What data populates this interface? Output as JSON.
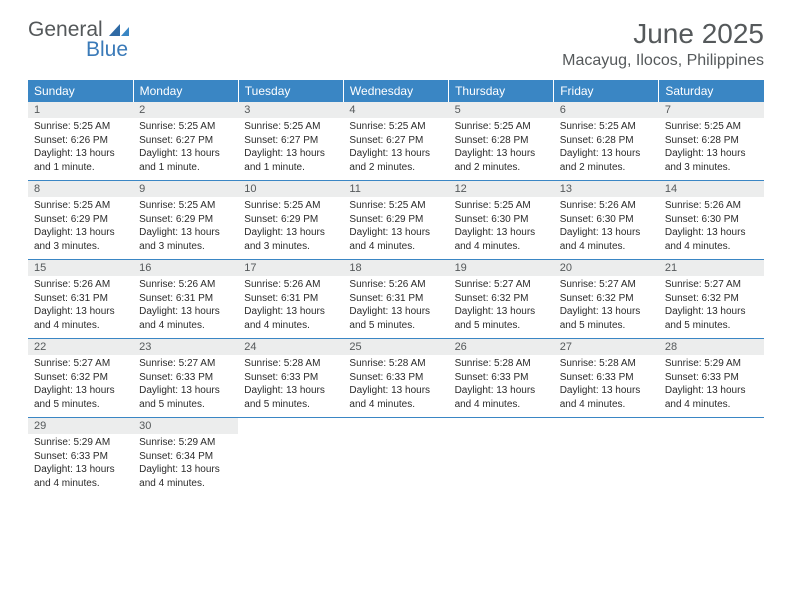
{
  "logo": {
    "text1": "General",
    "text2": "Blue"
  },
  "title": "June 2025",
  "location": "Macayug, Ilocos, Philippines",
  "colors": {
    "header_bg": "#3a86c4",
    "header_text": "#ffffff",
    "daynum_bg": "#eceded",
    "text_muted": "#55595b",
    "logo_blue": "#3a7ab8",
    "body_text": "#2b2b2b",
    "page_bg": "#ffffff"
  },
  "typography": {
    "title_fontsize": 28,
    "location_fontsize": 16,
    "header_fontsize": 12,
    "daynum_fontsize": 11,
    "body_fontsize": 10
  },
  "weekdays": [
    "Sunday",
    "Monday",
    "Tuesday",
    "Wednesday",
    "Thursday",
    "Friday",
    "Saturday"
  ],
  "weeks": [
    [
      {
        "num": "1",
        "sunrise": "Sunrise: 5:25 AM",
        "sunset": "Sunset: 6:26 PM",
        "day1": "Daylight: 13 hours",
        "day2": "and 1 minute."
      },
      {
        "num": "2",
        "sunrise": "Sunrise: 5:25 AM",
        "sunset": "Sunset: 6:27 PM",
        "day1": "Daylight: 13 hours",
        "day2": "and 1 minute."
      },
      {
        "num": "3",
        "sunrise": "Sunrise: 5:25 AM",
        "sunset": "Sunset: 6:27 PM",
        "day1": "Daylight: 13 hours",
        "day2": "and 1 minute."
      },
      {
        "num": "4",
        "sunrise": "Sunrise: 5:25 AM",
        "sunset": "Sunset: 6:27 PM",
        "day1": "Daylight: 13 hours",
        "day2": "and 2 minutes."
      },
      {
        "num": "5",
        "sunrise": "Sunrise: 5:25 AM",
        "sunset": "Sunset: 6:28 PM",
        "day1": "Daylight: 13 hours",
        "day2": "and 2 minutes."
      },
      {
        "num": "6",
        "sunrise": "Sunrise: 5:25 AM",
        "sunset": "Sunset: 6:28 PM",
        "day1": "Daylight: 13 hours",
        "day2": "and 2 minutes."
      },
      {
        "num": "7",
        "sunrise": "Sunrise: 5:25 AM",
        "sunset": "Sunset: 6:28 PM",
        "day1": "Daylight: 13 hours",
        "day2": "and 3 minutes."
      }
    ],
    [
      {
        "num": "8",
        "sunrise": "Sunrise: 5:25 AM",
        "sunset": "Sunset: 6:29 PM",
        "day1": "Daylight: 13 hours",
        "day2": "and 3 minutes."
      },
      {
        "num": "9",
        "sunrise": "Sunrise: 5:25 AM",
        "sunset": "Sunset: 6:29 PM",
        "day1": "Daylight: 13 hours",
        "day2": "and 3 minutes."
      },
      {
        "num": "10",
        "sunrise": "Sunrise: 5:25 AM",
        "sunset": "Sunset: 6:29 PM",
        "day1": "Daylight: 13 hours",
        "day2": "and 3 minutes."
      },
      {
        "num": "11",
        "sunrise": "Sunrise: 5:25 AM",
        "sunset": "Sunset: 6:29 PM",
        "day1": "Daylight: 13 hours",
        "day2": "and 4 minutes."
      },
      {
        "num": "12",
        "sunrise": "Sunrise: 5:25 AM",
        "sunset": "Sunset: 6:30 PM",
        "day1": "Daylight: 13 hours",
        "day2": "and 4 minutes."
      },
      {
        "num": "13",
        "sunrise": "Sunrise: 5:26 AM",
        "sunset": "Sunset: 6:30 PM",
        "day1": "Daylight: 13 hours",
        "day2": "and 4 minutes."
      },
      {
        "num": "14",
        "sunrise": "Sunrise: 5:26 AM",
        "sunset": "Sunset: 6:30 PM",
        "day1": "Daylight: 13 hours",
        "day2": "and 4 minutes."
      }
    ],
    [
      {
        "num": "15",
        "sunrise": "Sunrise: 5:26 AM",
        "sunset": "Sunset: 6:31 PM",
        "day1": "Daylight: 13 hours",
        "day2": "and 4 minutes."
      },
      {
        "num": "16",
        "sunrise": "Sunrise: 5:26 AM",
        "sunset": "Sunset: 6:31 PM",
        "day1": "Daylight: 13 hours",
        "day2": "and 4 minutes."
      },
      {
        "num": "17",
        "sunrise": "Sunrise: 5:26 AM",
        "sunset": "Sunset: 6:31 PM",
        "day1": "Daylight: 13 hours",
        "day2": "and 4 minutes."
      },
      {
        "num": "18",
        "sunrise": "Sunrise: 5:26 AM",
        "sunset": "Sunset: 6:31 PM",
        "day1": "Daylight: 13 hours",
        "day2": "and 5 minutes."
      },
      {
        "num": "19",
        "sunrise": "Sunrise: 5:27 AM",
        "sunset": "Sunset: 6:32 PM",
        "day1": "Daylight: 13 hours",
        "day2": "and 5 minutes."
      },
      {
        "num": "20",
        "sunrise": "Sunrise: 5:27 AM",
        "sunset": "Sunset: 6:32 PM",
        "day1": "Daylight: 13 hours",
        "day2": "and 5 minutes."
      },
      {
        "num": "21",
        "sunrise": "Sunrise: 5:27 AM",
        "sunset": "Sunset: 6:32 PM",
        "day1": "Daylight: 13 hours",
        "day2": "and 5 minutes."
      }
    ],
    [
      {
        "num": "22",
        "sunrise": "Sunrise: 5:27 AM",
        "sunset": "Sunset: 6:32 PM",
        "day1": "Daylight: 13 hours",
        "day2": "and 5 minutes."
      },
      {
        "num": "23",
        "sunrise": "Sunrise: 5:27 AM",
        "sunset": "Sunset: 6:33 PM",
        "day1": "Daylight: 13 hours",
        "day2": "and 5 minutes."
      },
      {
        "num": "24",
        "sunrise": "Sunrise: 5:28 AM",
        "sunset": "Sunset: 6:33 PM",
        "day1": "Daylight: 13 hours",
        "day2": "and 5 minutes."
      },
      {
        "num": "25",
        "sunrise": "Sunrise: 5:28 AM",
        "sunset": "Sunset: 6:33 PM",
        "day1": "Daylight: 13 hours",
        "day2": "and 4 minutes."
      },
      {
        "num": "26",
        "sunrise": "Sunrise: 5:28 AM",
        "sunset": "Sunset: 6:33 PM",
        "day1": "Daylight: 13 hours",
        "day2": "and 4 minutes."
      },
      {
        "num": "27",
        "sunrise": "Sunrise: 5:28 AM",
        "sunset": "Sunset: 6:33 PM",
        "day1": "Daylight: 13 hours",
        "day2": "and 4 minutes."
      },
      {
        "num": "28",
        "sunrise": "Sunrise: 5:29 AM",
        "sunset": "Sunset: 6:33 PM",
        "day1": "Daylight: 13 hours",
        "day2": "and 4 minutes."
      }
    ],
    [
      {
        "num": "29",
        "sunrise": "Sunrise: 5:29 AM",
        "sunset": "Sunset: 6:33 PM",
        "day1": "Daylight: 13 hours",
        "day2": "and 4 minutes."
      },
      {
        "num": "30",
        "sunrise": "Sunrise: 5:29 AM",
        "sunset": "Sunset: 6:34 PM",
        "day1": "Daylight: 13 hours",
        "day2": "and 4 minutes."
      },
      {
        "empty": true
      },
      {
        "empty": true
      },
      {
        "empty": true
      },
      {
        "empty": true
      },
      {
        "empty": true
      }
    ]
  ]
}
